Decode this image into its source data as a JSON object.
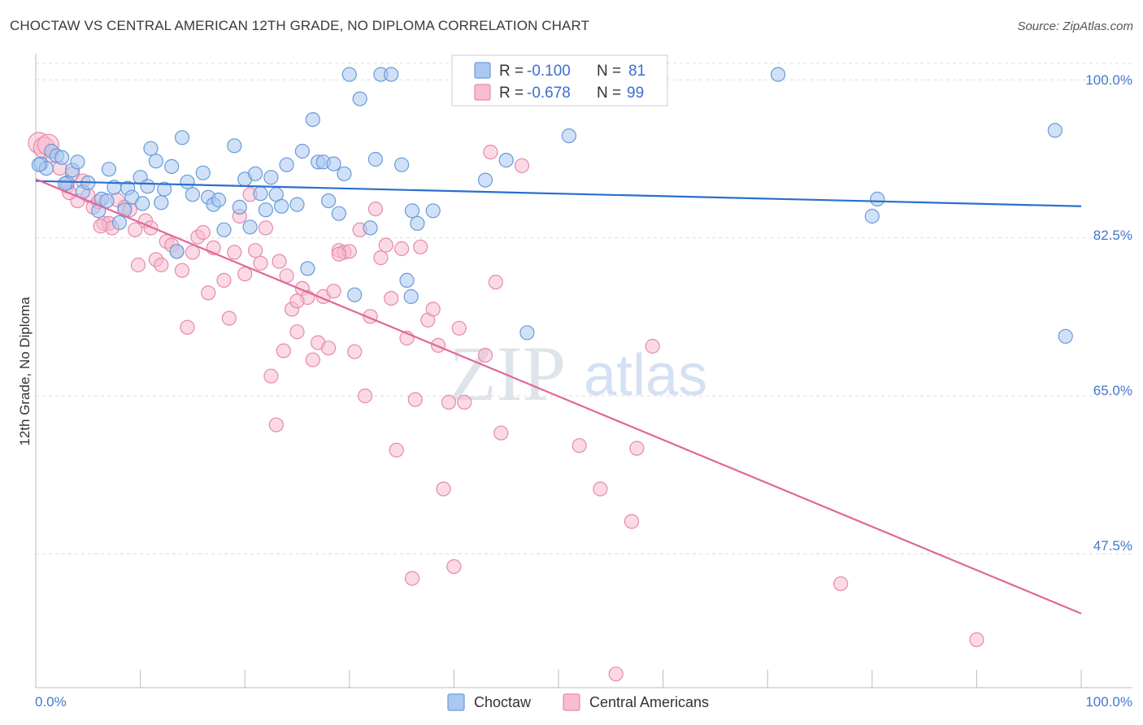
{
  "title": "CHOCTAW VS CENTRAL AMERICAN 12TH GRADE, NO DIPLOMA CORRELATION CHART",
  "source": "Source: ZipAtlas.com",
  "watermark": {
    "zip": "ZIP",
    "atlas": "atlas"
  },
  "colors": {
    "choctaw_fill": "#aac8f0",
    "choctaw_stroke": "#6a9ad8",
    "choctaw_line": "#2a6fcf",
    "central_fill": "#f7bcd0",
    "central_stroke": "#e58aab",
    "central_line": "#e0679a",
    "tick_text": "#4477cc",
    "grid": "#dddddd"
  },
  "legend": {
    "rows": [
      {
        "r_label": "R =",
        "r_value": "-0.100",
        "n_label": "N =",
        "n_value": "81"
      },
      {
        "r_label": "R =",
        "r_value": "-0.678",
        "n_label": "N =",
        "n_value": "99"
      }
    ]
  },
  "bottom_legend": [
    "Choctaw",
    "Central Americans"
  ],
  "chart_data": {
    "type": "scatter",
    "ylabel": "12th Grade, No Diploma",
    "x_tick_labels": [
      "0.0%",
      "100.0%"
    ],
    "y_tick_labels": [
      "100.0%",
      "82.5%",
      "65.0%",
      "47.5%"
    ],
    "y_ticks": [
      100.0,
      82.5,
      65.0,
      47.5
    ],
    "xlim": [
      0,
      100
    ],
    "ylim": [
      32.7,
      102.9
    ],
    "grid": true,
    "legend_position": "top-center",
    "series": [
      {
        "name": "Choctaw",
        "trend": {
          "x": [
            0,
            100
          ],
          "y": [
            88.8,
            86.0
          ]
        },
        "points": [
          [
            0.5,
            90.7
          ],
          [
            1,
            90.2
          ],
          [
            1.5,
            92.1
          ],
          [
            2,
            91.6
          ],
          [
            2.5,
            91.4
          ],
          [
            3,
            88.6
          ],
          [
            3.5,
            90.0
          ],
          [
            4,
            90.9
          ],
          [
            4.5,
            87.6
          ],
          [
            5,
            88.6
          ],
          [
            6,
            85.5
          ],
          [
            6.3,
            86.8
          ],
          [
            7,
            90.1
          ],
          [
            7.5,
            88.1
          ],
          [
            8,
            84.2
          ],
          [
            8.5,
            85.6
          ],
          [
            8.8,
            88.0
          ],
          [
            9.2,
            87.0
          ],
          [
            10,
            89.2
          ],
          [
            10.2,
            86.3
          ],
          [
            10.7,
            88.2
          ],
          [
            11,
            92.4
          ],
          [
            11.5,
            91.0
          ],
          [
            12,
            86.4
          ],
          [
            12.3,
            87.9
          ],
          [
            13,
            90.4
          ],
          [
            13.5,
            81.0
          ],
          [
            14,
            93.6
          ],
          [
            14.5,
            88.7
          ],
          [
            15,
            87.3
          ],
          [
            16,
            89.7
          ],
          [
            16.5,
            87.0
          ],
          [
            17,
            86.2
          ],
          [
            17.5,
            86.7
          ],
          [
            18,
            83.4
          ],
          [
            19,
            92.7
          ],
          [
            19.5,
            85.9
          ],
          [
            20,
            89.0
          ],
          [
            20.5,
            83.7
          ],
          [
            21,
            89.6
          ],
          [
            21.5,
            87.4
          ],
          [
            22,
            85.6
          ],
          [
            22.5,
            89.2
          ],
          [
            23,
            87.3
          ],
          [
            23.5,
            86.0
          ],
          [
            24,
            90.6
          ],
          [
            25,
            86.2
          ],
          [
            25.5,
            92.1
          ],
          [
            26,
            79.1
          ],
          [
            26.5,
            95.6
          ],
          [
            27,
            90.9
          ],
          [
            27.5,
            90.9
          ],
          [
            28,
            86.6
          ],
          [
            28.5,
            90.7
          ],
          [
            29,
            85.2
          ],
          [
            29.5,
            89.6
          ],
          [
            30,
            100.6
          ],
          [
            30.5,
            76.2
          ],
          [
            31,
            97.9
          ],
          [
            32,
            83.6
          ],
          [
            32.5,
            91.2
          ],
          [
            33,
            100.6
          ],
          [
            34,
            100.6
          ],
          [
            35,
            90.6
          ],
          [
            35.5,
            77.8
          ],
          [
            35.9,
            76.0
          ],
          [
            36,
            85.5
          ],
          [
            36.5,
            84.1
          ],
          [
            38,
            85.5
          ],
          [
            43,
            88.9
          ],
          [
            45,
            91.1
          ],
          [
            47,
            72.0
          ],
          [
            51,
            93.8
          ],
          [
            71,
            100.6
          ],
          [
            80,
            84.9
          ],
          [
            80.5,
            86.8
          ],
          [
            97.5,
            94.4
          ],
          [
            98.5,
            71.6
          ],
          [
            0.3,
            90.6
          ],
          [
            2.8,
            88.5
          ],
          [
            6.8,
            86.6
          ]
        ]
      },
      {
        "name": "Central Americans",
        "trend": {
          "x": [
            0,
            100
          ],
          "y": [
            89.0,
            40.9
          ]
        },
        "points": [
          [
            0.3,
            93.0
          ],
          [
            0.8,
            92.5
          ],
          [
            1.5,
            91.6
          ],
          [
            2.3,
            90.2
          ],
          [
            3,
            88.2
          ],
          [
            3.5,
            89.6
          ],
          [
            4,
            86.6
          ],
          [
            4.5,
            88.8
          ],
          [
            5,
            87.2
          ],
          [
            5.5,
            85.9
          ],
          [
            6,
            86.5
          ],
          [
            6.5,
            84.1
          ],
          [
            7,
            84.1
          ],
          [
            7.3,
            83.6
          ],
          [
            7.8,
            86.7
          ],
          [
            8.5,
            85.9
          ],
          [
            9,
            85.6
          ],
          [
            9.5,
            83.4
          ],
          [
            9.8,
            79.5
          ],
          [
            10.5,
            84.4
          ],
          [
            11,
            83.6
          ],
          [
            11.5,
            80.1
          ],
          [
            12,
            79.5
          ],
          [
            12.5,
            82.1
          ],
          [
            13,
            81.7
          ],
          [
            13.5,
            81.0
          ],
          [
            14,
            78.9
          ],
          [
            14.5,
            72.6
          ],
          [
            15,
            80.9
          ],
          [
            15.5,
            82.6
          ],
          [
            16,
            83.1
          ],
          [
            16.5,
            76.4
          ],
          [
            17,
            81.4
          ],
          [
            18,
            77.8
          ],
          [
            18.5,
            73.6
          ],
          [
            19,
            80.9
          ],
          [
            19.5,
            84.9
          ],
          [
            20,
            78.5
          ],
          [
            20.5,
            87.3
          ],
          [
            21,
            81.1
          ],
          [
            21.5,
            79.7
          ],
          [
            22,
            83.6
          ],
          [
            22.5,
            67.2
          ],
          [
            23,
            61.8
          ],
          [
            23.3,
            79.9
          ],
          [
            23.7,
            70.0
          ],
          [
            24,
            78.3
          ],
          [
            24.5,
            74.6
          ],
          [
            25,
            72.1
          ],
          [
            25.5,
            76.9
          ],
          [
            26,
            75.9
          ],
          [
            26.5,
            69.0
          ],
          [
            27,
            70.9
          ],
          [
            27.5,
            76.0
          ],
          [
            28,
            70.3
          ],
          [
            28.5,
            76.6
          ],
          [
            29,
            81.1
          ],
          [
            29.5,
            80.9
          ],
          [
            30,
            81.0
          ],
          [
            30.5,
            69.9
          ],
          [
            31,
            83.4
          ],
          [
            31.5,
            65.0
          ],
          [
            32,
            73.8
          ],
          [
            32.5,
            85.7
          ],
          [
            33,
            80.3
          ],
          [
            33.5,
            81.7
          ],
          [
            34,
            75.8
          ],
          [
            34.5,
            59.0
          ],
          [
            35,
            81.3
          ],
          [
            35.5,
            71.4
          ],
          [
            36,
            44.8
          ],
          [
            36.3,
            64.6
          ],
          [
            36.8,
            81.5
          ],
          [
            37.5,
            73.4
          ],
          [
            38,
            74.6
          ],
          [
            38.5,
            70.6
          ],
          [
            39,
            54.7
          ],
          [
            39.5,
            64.3
          ],
          [
            40,
            46.1
          ],
          [
            40.5,
            72.5
          ],
          [
            41,
            64.3
          ],
          [
            43,
            69.5
          ],
          [
            43.5,
            92.0
          ],
          [
            44,
            77.6
          ],
          [
            44.5,
            60.9
          ],
          [
            46.5,
            90.5
          ],
          [
            52,
            59.5
          ],
          [
            54,
            54.7
          ],
          [
            55.5,
            34.2
          ],
          [
            57,
            51.1
          ],
          [
            57.5,
            59.2
          ],
          [
            59,
            70.5
          ],
          [
            77,
            44.2
          ],
          [
            90,
            38.0
          ],
          [
            1.2,
            92.8
          ],
          [
            3.2,
            87.5
          ],
          [
            6.2,
            83.8
          ],
          [
            25,
            75.5
          ],
          [
            29,
            80.7
          ]
        ]
      }
    ]
  }
}
